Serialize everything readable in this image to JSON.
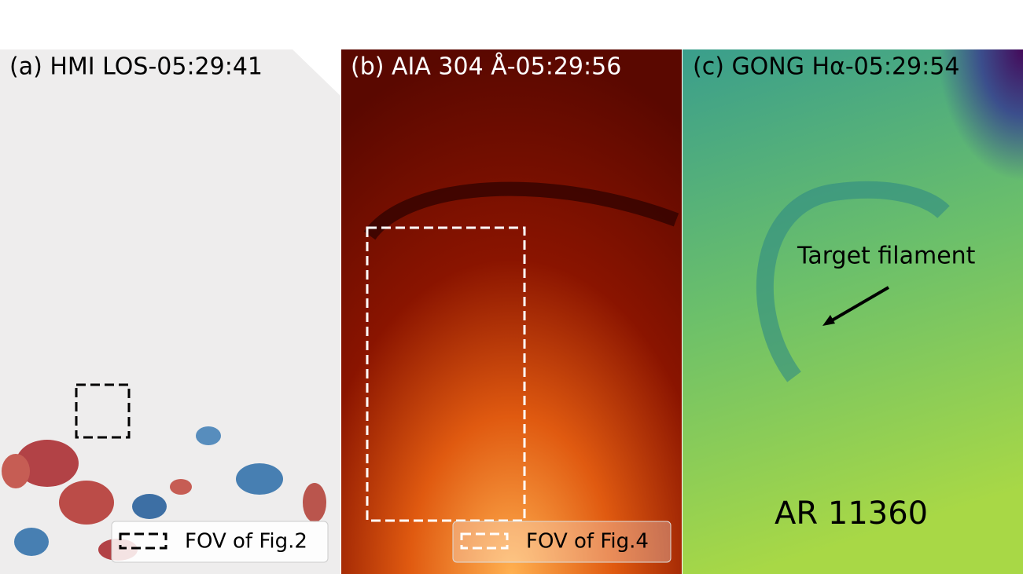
{
  "panels": [
    {
      "title": "(a) HMI LOS-05:29:41",
      "legend": "FOV of Fig.2"
    },
    {
      "title": "(b) AIA 304 Å-05:29:56",
      "legend": "FOV of Fig.4"
    },
    {
      "title": "(c) GONG Hα-05:29:54",
      "annotations": [
        "Target filament",
        "AR 11360"
      ]
    }
  ]
}
